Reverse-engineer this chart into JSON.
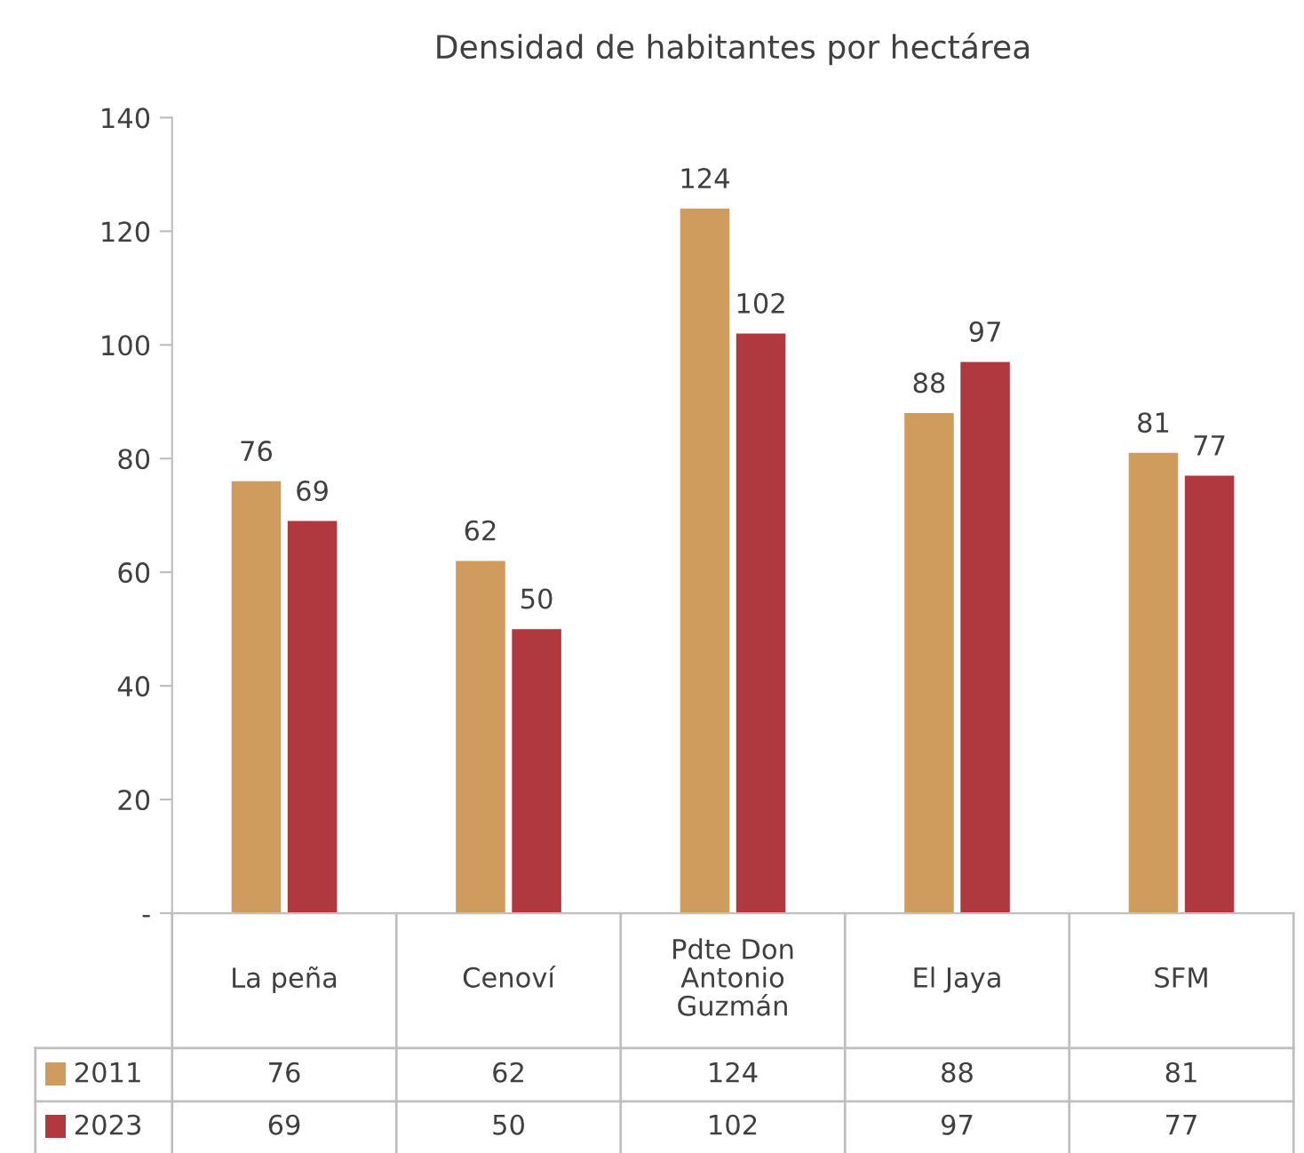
{
  "chart_data": {
    "type": "bar",
    "title": "Densidad de habitantes por hectárea",
    "categories": [
      "La peña",
      "Cenoví",
      "Pdte Don\nAntonio\nGuzmán",
      "El Jaya",
      "SFM"
    ],
    "series": [
      {
        "name": "2011",
        "color": "#d09c5e",
        "values": [
          76,
          62,
          124,
          88,
          81
        ],
        "value_labels": [
          "76",
          "62",
          "124",
          "88",
          "81"
        ]
      },
      {
        "name": "2023",
        "color": "#b0393f",
        "values": [
          69,
          50,
          102,
          97,
          77
        ],
        "value_labels": [
          "69",
          "50",
          "102",
          "97",
          "77"
        ]
      }
    ],
    "ylim": [
      0,
      140
    ],
    "yticks": [
      {
        "value": 0,
        "label": "-"
      },
      20,
      40,
      60,
      80,
      100,
      120,
      140
    ],
    "annotations": [
      "76",
      "62",
      "124",
      "88",
      "81",
      "69",
      "50",
      "102",
      "97",
      "77"
    ],
    "grid": false,
    "legend": "bottom"
  }
}
